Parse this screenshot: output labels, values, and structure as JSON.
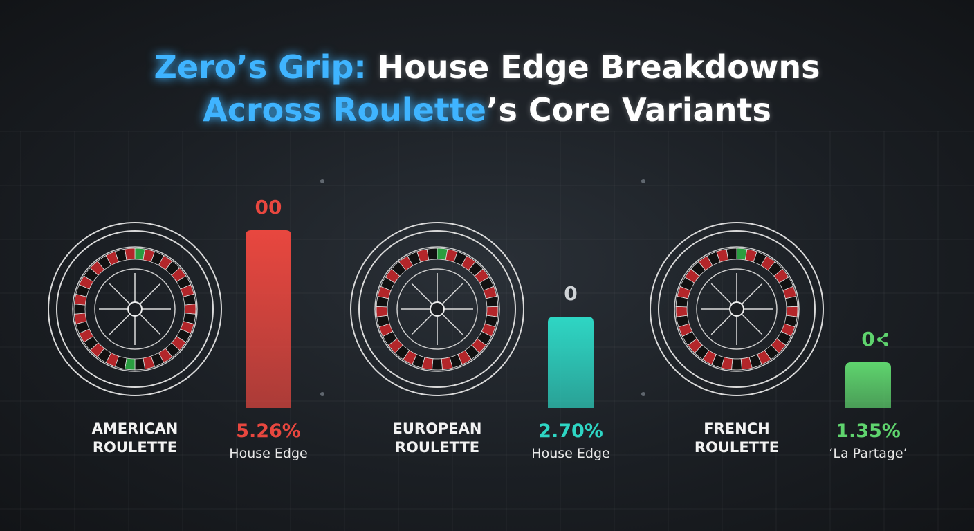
{
  "chart_data": {
    "type": "bar",
    "title_lines": [
      [
        {
          "text": "Zero’s Grip:",
          "color": "#3fb4ff"
        },
        {
          "text": " House Edge Breakdowns",
          "color": "#ffffff"
        }
      ],
      [
        {
          "text": "Across Roulette",
          "color": "#3fb4ff"
        },
        {
          "text": "’s Core Variants",
          "color": "#ffffff"
        }
      ]
    ],
    "categories": [
      "AMERICAN ROULETTE",
      "EUROPEAN ROULETTE",
      "FRENCH ROULETTE"
    ],
    "values": [
      5.26,
      2.7,
      1.35
    ],
    "value_labels": [
      "5.26%",
      "2.70%",
      "1.35%"
    ],
    "captions": [
      "House Edge",
      "House Edge",
      "‘La Partage’"
    ],
    "annotations": [
      "00",
      "0",
      "0"
    ],
    "colors": [
      "#e8473f",
      "#2ed6c4",
      "#5fd46e"
    ]
  }
}
